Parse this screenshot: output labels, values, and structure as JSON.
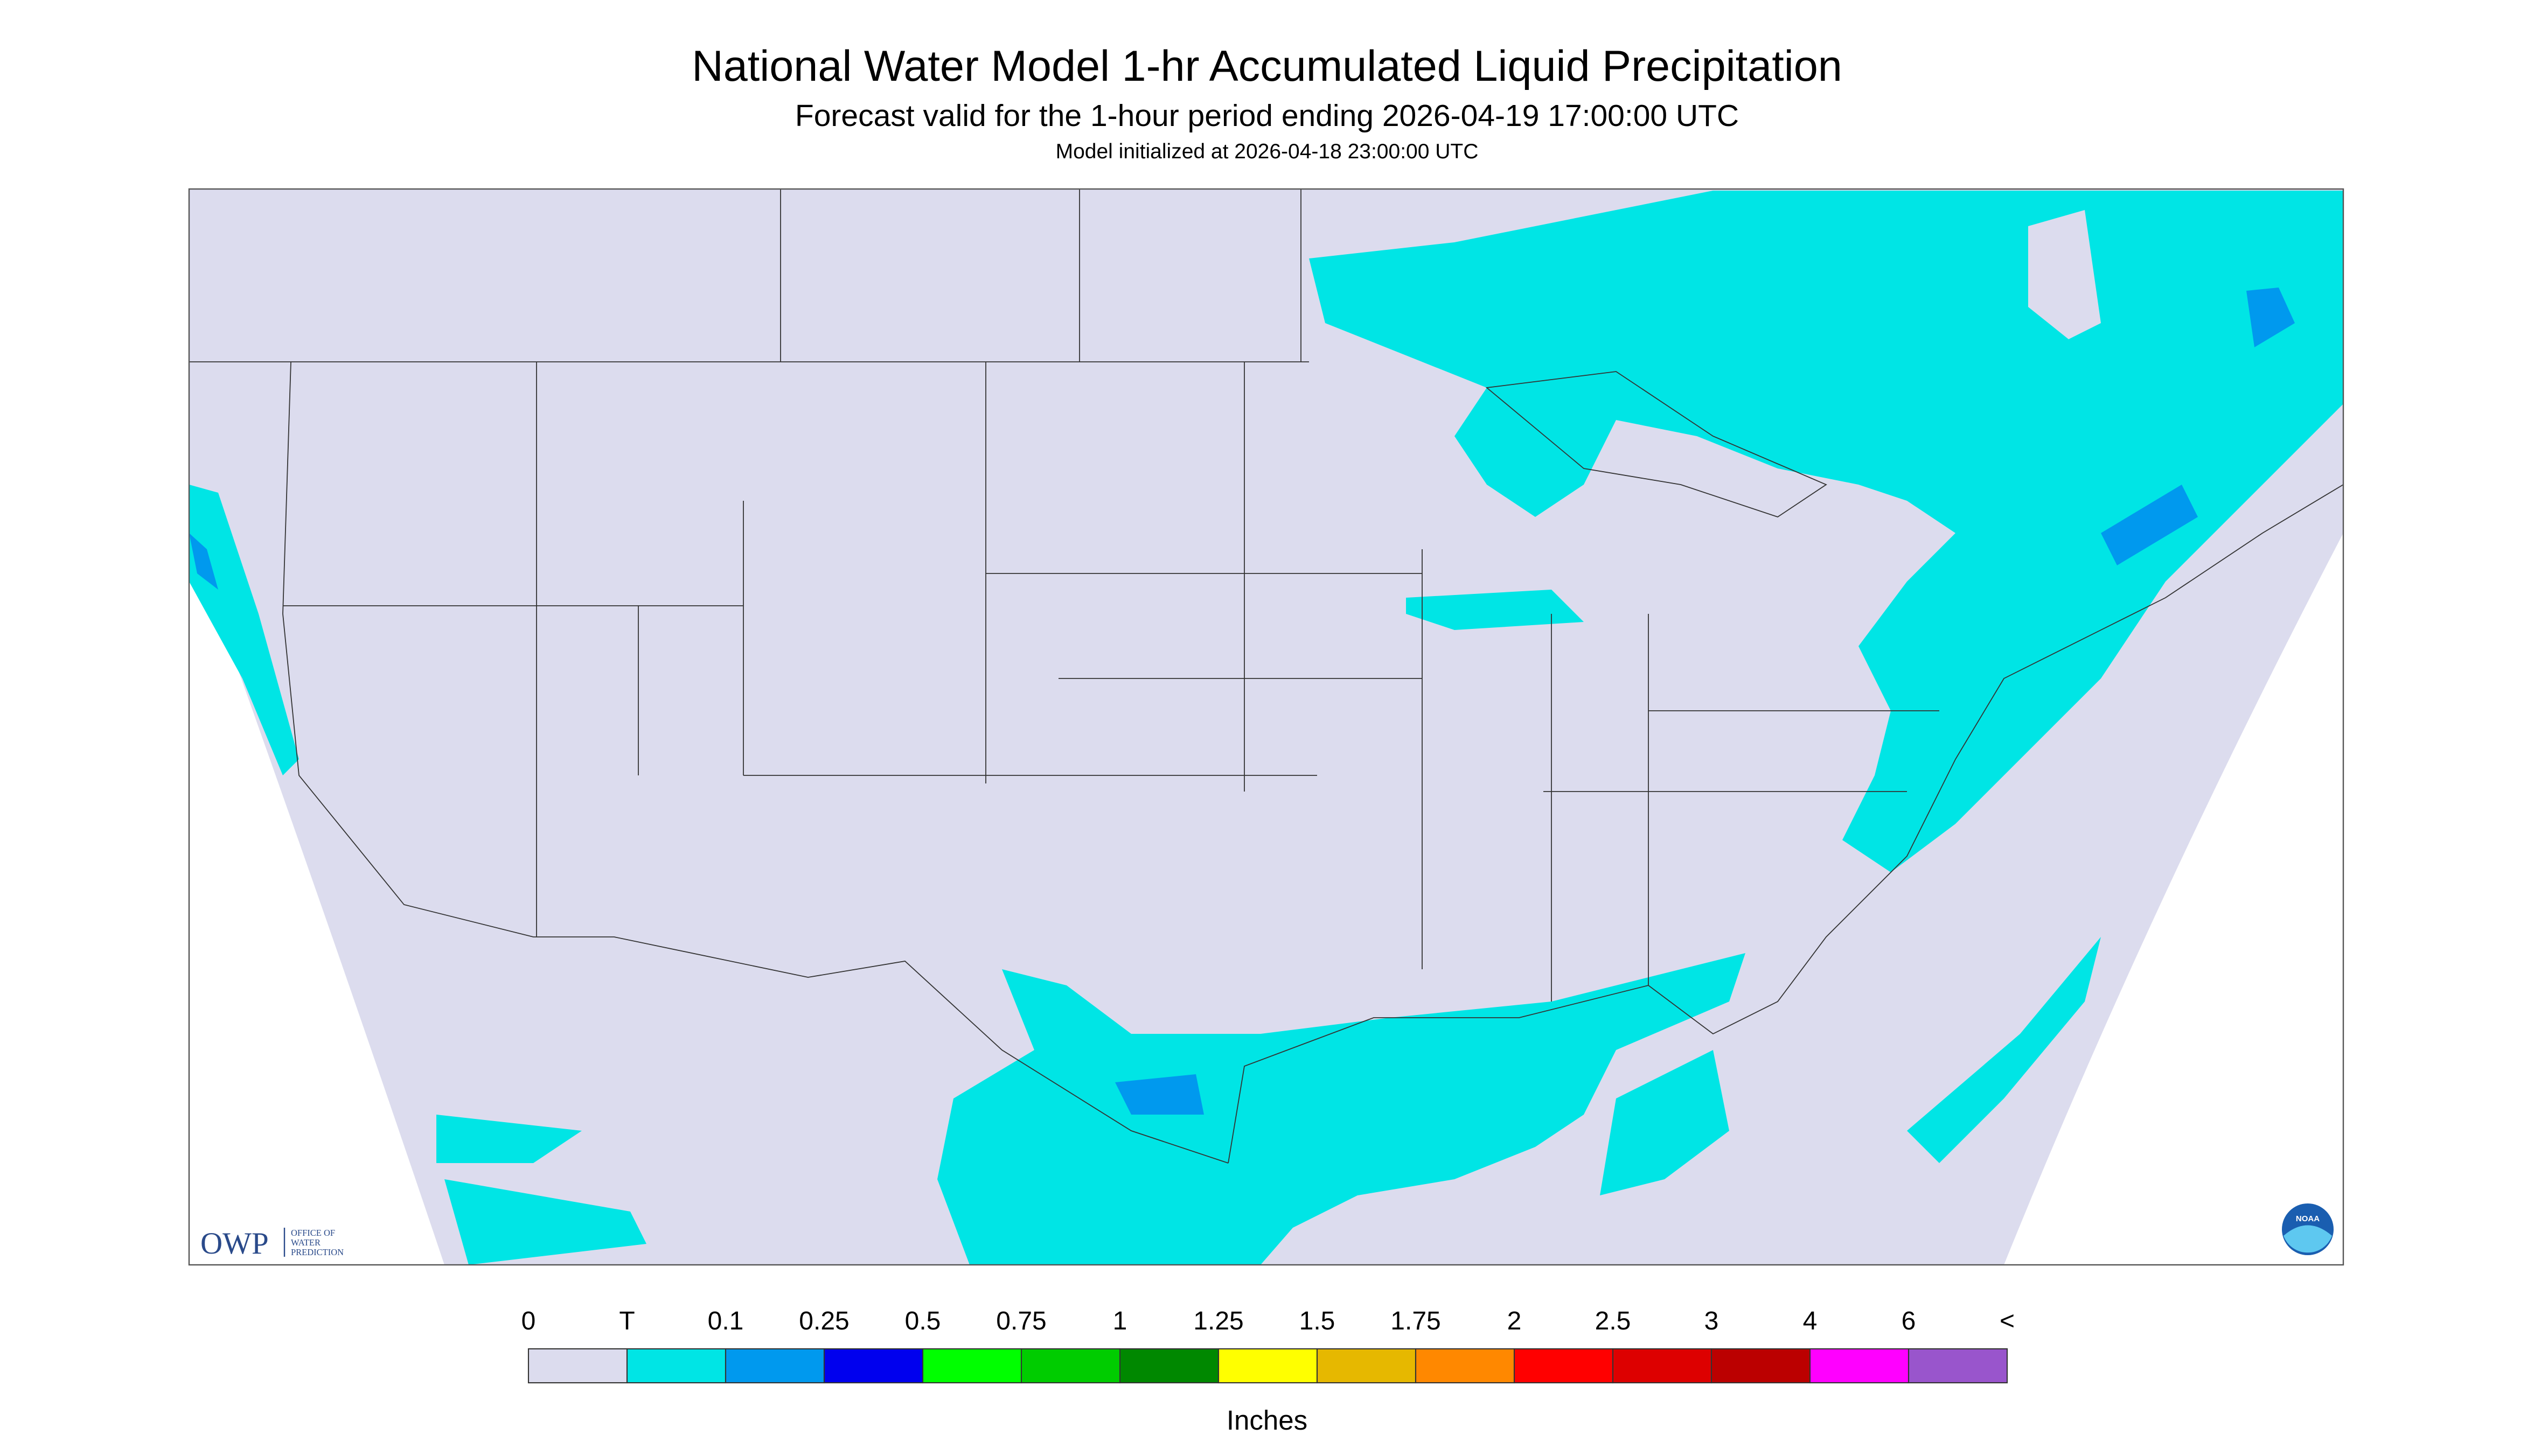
{
  "header": {
    "title": "National Water Model 1-hr Accumulated Liquid Precipitation",
    "subtitle": "Forecast valid for the 1-hour period ending 2026-04-19 17:00:00 UTC",
    "initialized": "Model initialized at 2026-04-18 23:00:00 UTC"
  },
  "logo": {
    "mark": "OWP",
    "lines": [
      "OFFICE OF",
      "WATER",
      "PREDICTION"
    ],
    "agency": "NOAA"
  },
  "legend": {
    "labels": [
      "0",
      "T",
      "0.1",
      "0.25",
      "0.5",
      "0.75",
      "1",
      "1.25",
      "1.5",
      "1.75",
      "2",
      "2.5",
      "3",
      "4",
      "6",
      "<"
    ],
    "colors": [
      "#dcdcee",
      "#00e5e5",
      "#0099ee",
      "#0000ee",
      "#00ff00",
      "#00cc00",
      "#008800",
      "#ffff00",
      "#e6b800",
      "#ff8800",
      "#ff0000",
      "#dd0000",
      "#bb0000",
      "#ff00ff",
      "#9955cc"
    ],
    "unit": "Inches"
  }
}
